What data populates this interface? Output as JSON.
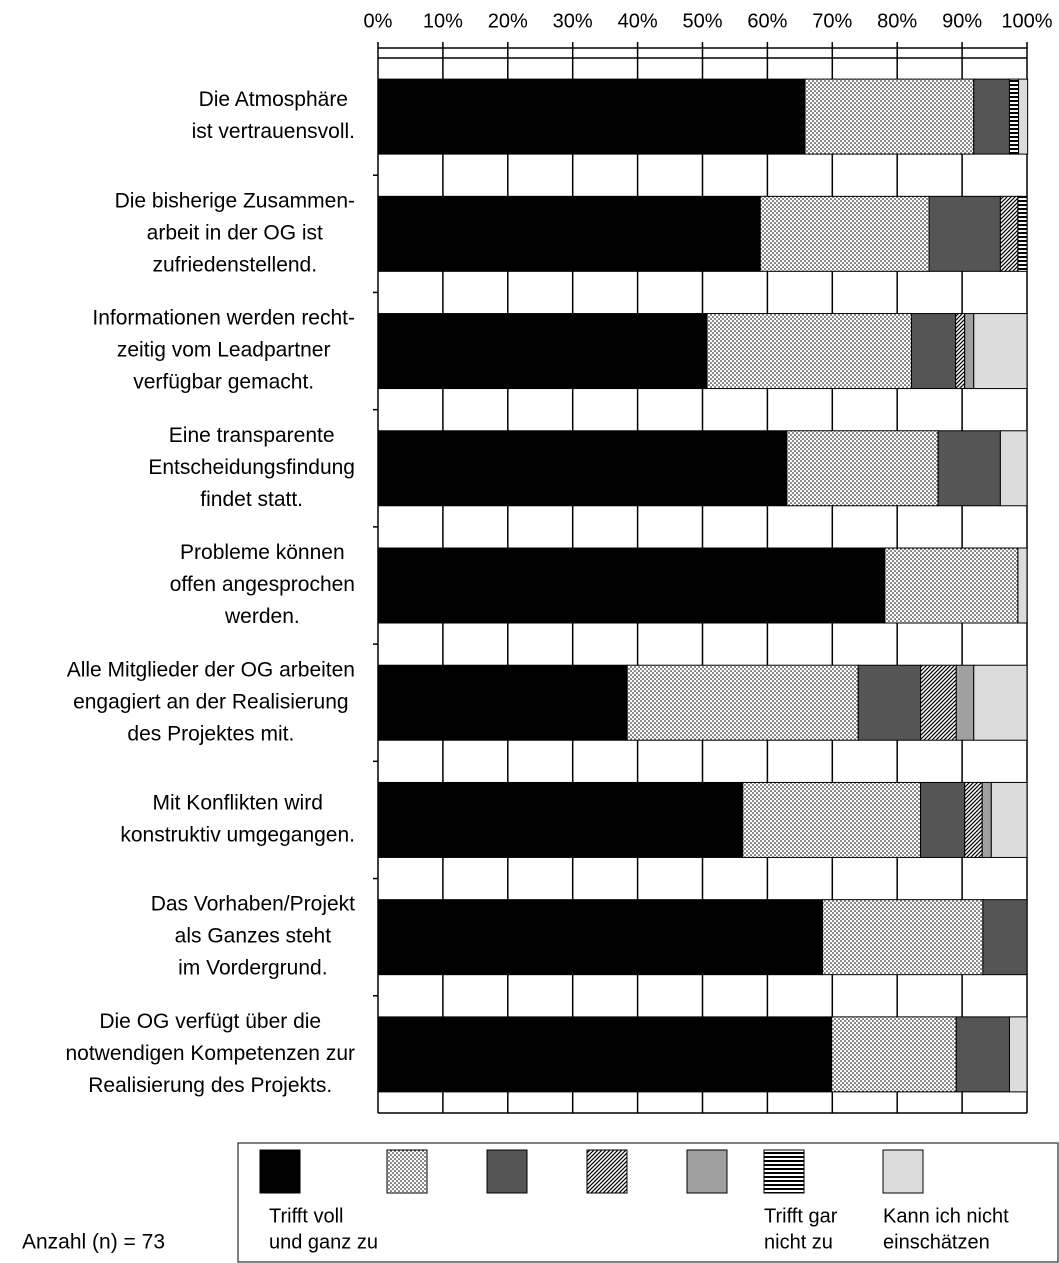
{
  "chart_data": {
    "type": "stacked-bar-horizontal",
    "categories": [
      [
        "Die Atmosphäre",
        "ist vertrauensvoll."
      ],
      [
        "Die bisherige Zusammen-",
        "arbeit in der OG ist",
        "zufriedenstellend."
      ],
      [
        "Informationen werden recht-",
        "zeitig vom Leadpartner",
        "verfügbar gemacht."
      ],
      [
        "Eine transparente",
        "Entscheidungsfindung",
        "findet statt."
      ],
      [
        "Probleme können",
        "offen angesprochen",
        "werden."
      ],
      [
        "Alle Mitglieder der OG arbeiten",
        "engagiert an der Realisierung",
        "des Projektes mit."
      ],
      [
        "Mit Konflikten wird",
        "konstruktiv umgegangen."
      ],
      [
        "Das Vorhaben/Projekt",
        "als Ganzes steht",
        "im Vordergrund."
      ],
      [
        "Die OG verfügt über die",
        "notwendigen Kompetenzen zur",
        "Realisierung des Projekts."
      ]
    ],
    "series": [
      {
        "name": [
          "Trifft voll",
          "und ganz zu"
        ],
        "color": "#000000",
        "pattern": null,
        "values": [
          65.8,
          58.9,
          50.7,
          63.0,
          78.1,
          38.4,
          56.2,
          68.5,
          69.9
        ]
      },
      {
        "name": null,
        "color": "#ffffff",
        "pattern": "dots",
        "values": [
          26.0,
          26.0,
          31.5,
          23.3,
          20.5,
          35.6,
          27.4,
          24.7,
          19.2
        ]
      },
      {
        "name": null,
        "color": "#555555",
        "pattern": null,
        "values": [
          5.5,
          11.0,
          6.8,
          9.6,
          0,
          9.6,
          6.8,
          6.8,
          8.2
        ]
      },
      {
        "name": null,
        "color": "#ffffff",
        "pattern": "diagonal",
        "values": [
          0,
          2.7,
          1.4,
          0,
          0,
          5.5,
          2.7,
          0,
          0
        ]
      },
      {
        "name": null,
        "color": "#a0a0a0",
        "pattern": null,
        "values": [
          0,
          0,
          1.4,
          0,
          0,
          2.7,
          1.4,
          0,
          0
        ]
      },
      {
        "name": [
          "Trifft gar",
          "nicht zu"
        ],
        "color": "#ffffff",
        "pattern": "horizontal",
        "values": [
          1.4,
          1.4,
          0,
          0,
          0,
          0,
          0,
          0,
          0
        ]
      },
      {
        "name": [
          "Kann ich nicht",
          "einschätzen"
        ],
        "color": "#dcdcdc",
        "pattern": null,
        "values": [
          1.4,
          0,
          8.2,
          4.1,
          1.4,
          8.2,
          5.5,
          0,
          2.7
        ]
      }
    ],
    "xlim": [
      0,
      100
    ],
    "xticks": [
      {
        "value": 0,
        "label": "0%"
      },
      {
        "value": 10,
        "label": "10%"
      },
      {
        "value": 20,
        "label": "20%"
      },
      {
        "value": 30,
        "label": "30%"
      },
      {
        "value": 40,
        "label": "40%"
      },
      {
        "value": 50,
        "label": "50%"
      },
      {
        "value": 60,
        "label": "60%"
      },
      {
        "value": 70,
        "label": "70%"
      },
      {
        "value": 80,
        "label": "80%"
      },
      {
        "value": 90,
        "label": "90%"
      },
      {
        "value": 100,
        "label": "100%"
      }
    ],
    "grid": true,
    "note": "Anzahl (n) = 73"
  }
}
